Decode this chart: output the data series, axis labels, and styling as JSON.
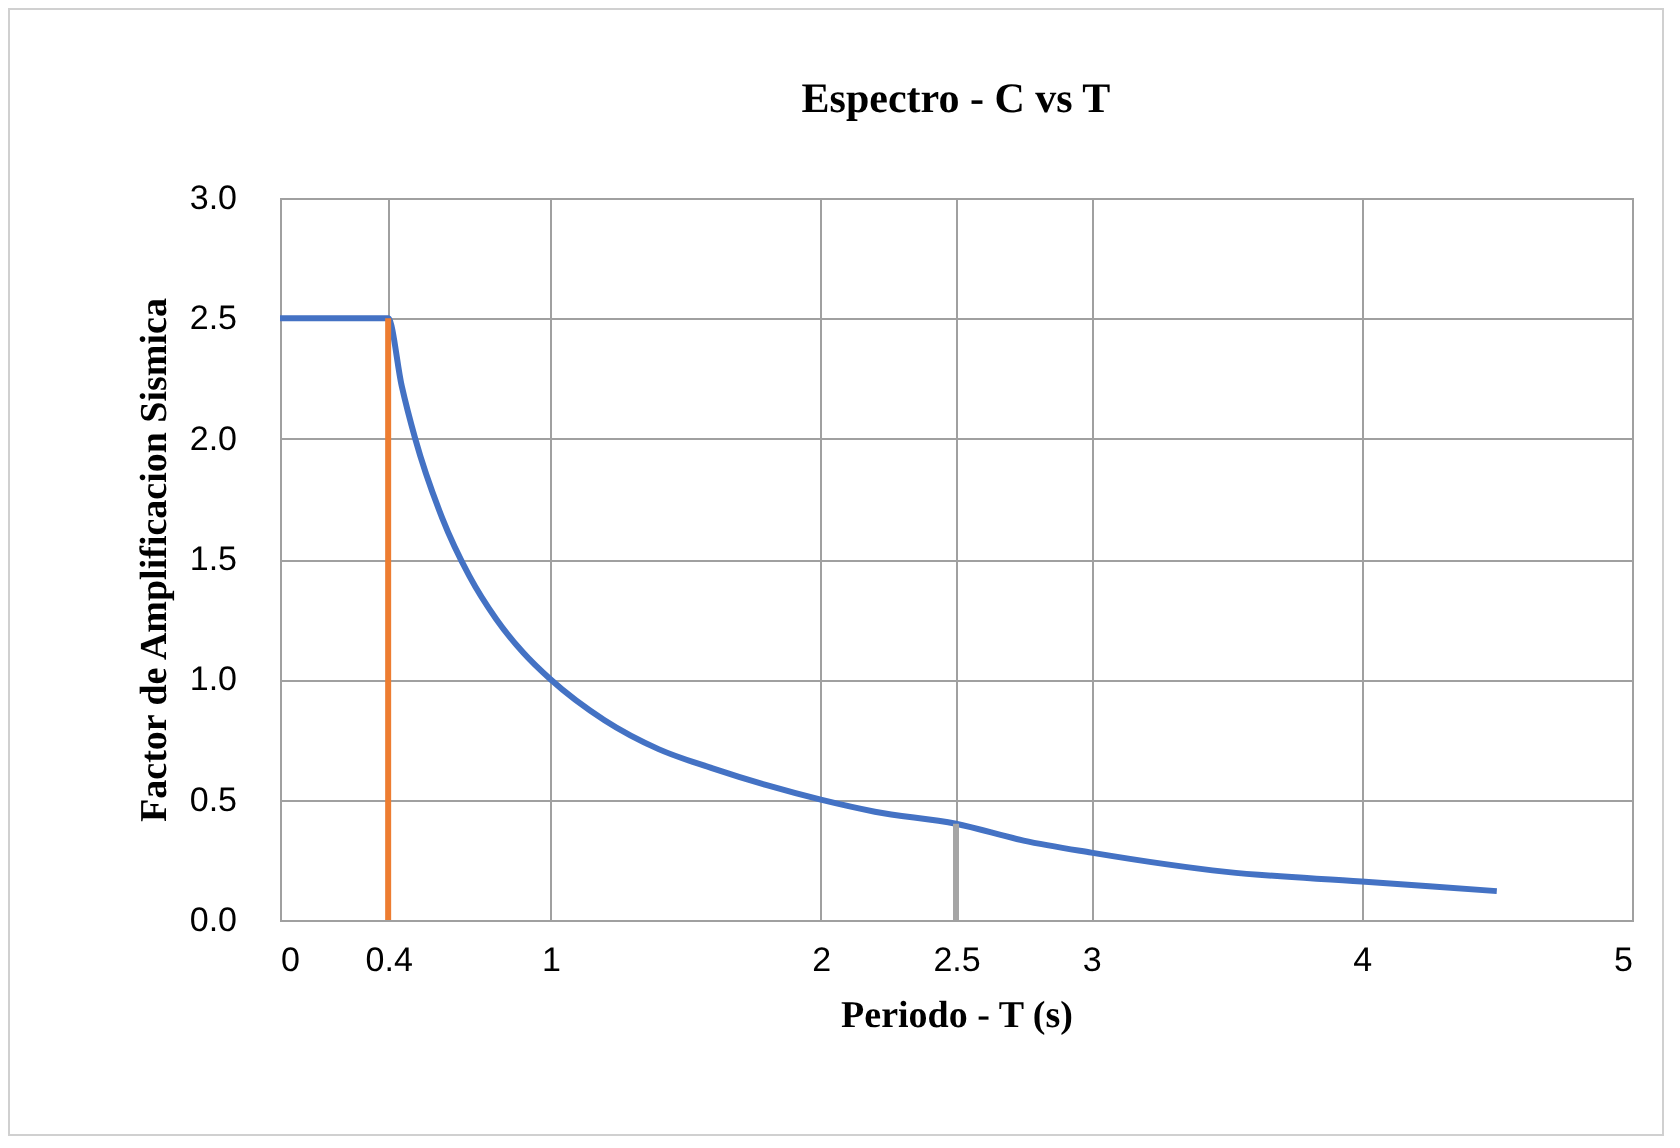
{
  "chart_data": {
    "type": "line",
    "title": "Espectro - C vs T",
    "xlabel": "Periodo - T (s)",
    "ylabel": "Factor de Amplificacion Sismica",
    "xlim": [
      0,
      5
    ],
    "xticks": [
      0,
      0.4,
      1,
      2,
      2.5,
      3,
      4,
      5
    ],
    "ylim": [
      0,
      3
    ],
    "yticks": [
      {
        "value": 0,
        "label": "0.0"
      },
      {
        "value": 0.5,
        "label": "0.5"
      },
      {
        "value": 1,
        "label": "1.0"
      },
      {
        "value": 1.5,
        "label": "1.5"
      },
      {
        "value": 2,
        "label": "2.0"
      },
      {
        "value": 2.5,
        "label": "2.5"
      },
      {
        "value": 3,
        "label": "3.0"
      }
    ],
    "grid": true,
    "series": [
      {
        "color": "#4472c4",
        "x": [
          0,
          0.2,
          0.4,
          0.45,
          0.5,
          0.6,
          0.7,
          0.8,
          0.9,
          1,
          1.2,
          1.4,
          1.6,
          1.8,
          2,
          2.2,
          2.5,
          2.75,
          3,
          3.5,
          4,
          4.5
        ],
        "values": [
          2.5,
          2.5,
          2.5,
          2.22,
          2.0,
          1.67,
          1.43,
          1.25,
          1.11,
          1.0,
          0.83,
          0.71,
          0.63,
          0.56,
          0.5,
          0.45,
          0.4,
          0.33,
          0.28,
          0.2,
          0.16,
          0.12
        ]
      },
      {
        "color": "#ed7d31",
        "x": [
          0.4,
          0.4
        ],
        "values": [
          0,
          2.5
        ]
      },
      {
        "color": "#a5a5a5",
        "x": [
          2.5,
          2.5
        ],
        "values": [
          0,
          0.4
        ]
      }
    ]
  }
}
